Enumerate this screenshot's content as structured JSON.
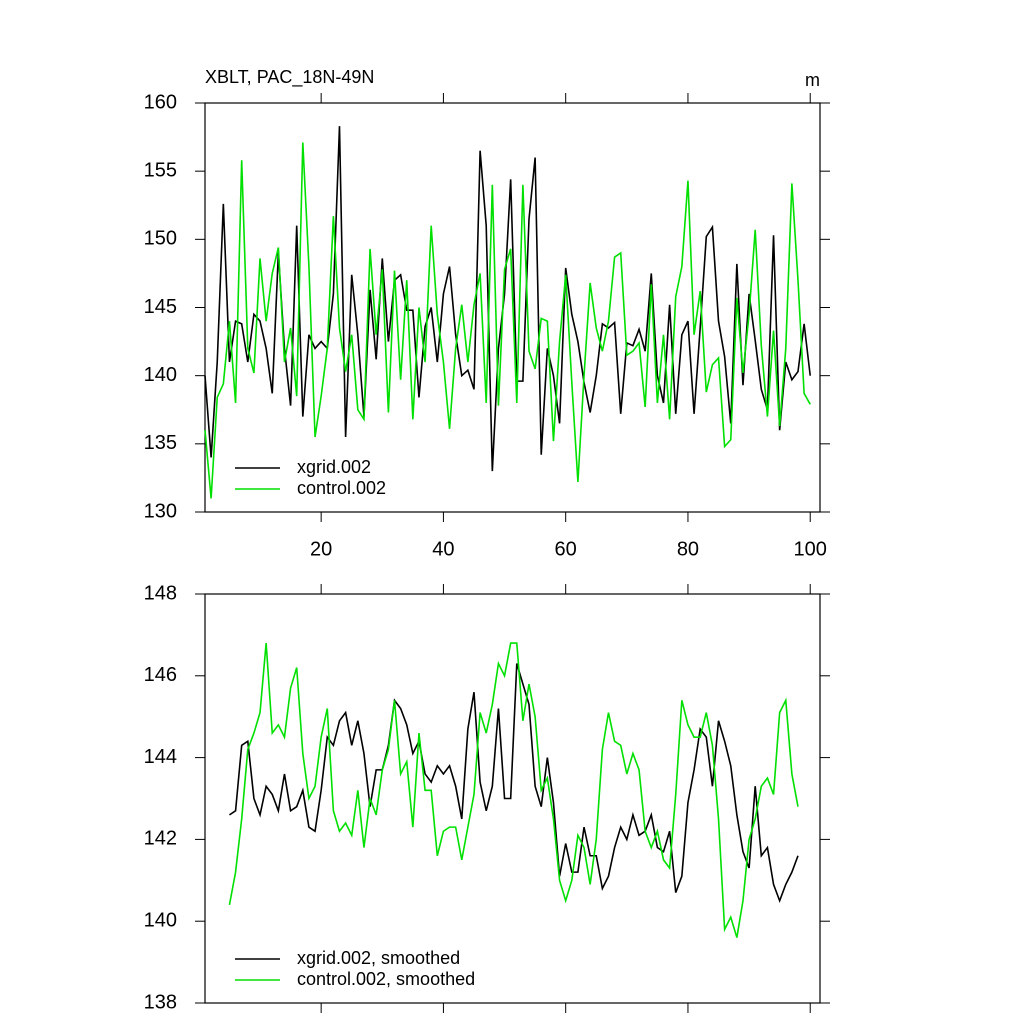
{
  "chart_data": [
    {
      "type": "line",
      "title": "XBLT, PAC_18N-49N",
      "units": "m",
      "x": [
        1,
        2,
        3,
        4,
        5,
        6,
        7,
        8,
        9,
        10,
        11,
        12,
        13,
        14,
        15,
        16,
        17,
        18,
        19,
        20,
        21,
        22,
        23,
        24,
        25,
        26,
        27,
        28,
        29,
        30,
        31,
        32,
        33,
        34,
        35,
        36,
        37,
        38,
        39,
        40,
        41,
        42,
        43,
        44,
        45,
        46,
        47,
        48,
        49,
        50,
        51,
        52,
        53,
        54,
        55,
        56,
        57,
        58,
        59,
        60,
        61,
        62,
        63,
        64,
        65,
        66,
        67,
        68,
        69,
        70,
        71,
        72,
        73,
        74,
        75,
        76,
        77,
        78,
        79,
        80,
        81,
        82,
        83,
        84,
        85,
        86,
        87,
        88,
        89,
        90,
        91,
        92,
        93,
        94,
        95,
        96,
        97,
        98,
        99,
        100
      ],
      "series": [
        {
          "name": "xgrid.002",
          "color": "#000000",
          "values": [
            140,
            134,
            141,
            152.6,
            141,
            144,
            143.8,
            141,
            144.5,
            144,
            142,
            138.7,
            149,
            142,
            137.8,
            151,
            137,
            143,
            142,
            142.5,
            142,
            146,
            158.3,
            135.5,
            147.4,
            143,
            137,
            146.3,
            141.2,
            148.6,
            142.5,
            147,
            147.4,
            144.8,
            144.8,
            138.4,
            143.6,
            145,
            141,
            146,
            148,
            143,
            140,
            140.4,
            139,
            156.5,
            151,
            133,
            142,
            146,
            154.4,
            139.6,
            139.6,
            151.5,
            156,
            134.2,
            142,
            140,
            136.5,
            147.9,
            144.5,
            142.5,
            139.5,
            137.3,
            140,
            143.8,
            143.5,
            143.9,
            137.2,
            142.4,
            142.2,
            143.4,
            141.8,
            147.5,
            140,
            138,
            145.2,
            137.2,
            143,
            144,
            137.2,
            143.5,
            150.2,
            150.9,
            144,
            141.4,
            136.5,
            148.2,
            139.3,
            146,
            142.6,
            139,
            137.5,
            150.3,
            136,
            141,
            139.7,
            140.3,
            143.8,
            140
          ]
        },
        {
          "name": "control.002",
          "color": "#00e000",
          "values": [
            136,
            131,
            138.4,
            139.4,
            144,
            138,
            155.8,
            142,
            140.2,
            148.6,
            144,
            147.5,
            149.4,
            141,
            143.5,
            138.5,
            157.1,
            148,
            135.5,
            138.5,
            142,
            151.7,
            143.5,
            140.3,
            143,
            137.5,
            136.8,
            149.3,
            143,
            147.8,
            137.3,
            147.7,
            139.7,
            147,
            136.8,
            145,
            141,
            151,
            144.5,
            141,
            136.1,
            142,
            145.2,
            141,
            145.2,
            147.5,
            138,
            154,
            137.8,
            147.8,
            149.3,
            138,
            154,
            141.8,
            140.5,
            144.2,
            144,
            135.2,
            142.5,
            147.4,
            139.5,
            132.2,
            140,
            146.8,
            143.5,
            141.8,
            144,
            148.7,
            149,
            141.5,
            141.8,
            142.4,
            137.7,
            146.7,
            138,
            143,
            136.8,
            145.8,
            148,
            154.3,
            143,
            146.2,
            138.8,
            140.8,
            141.3,
            134.8,
            135.3,
            145.7,
            140.2,
            144.5,
            150.7,
            142.2,
            137,
            143.3,
            136.3,
            142,
            154.1,
            147,
            138.7,
            137.9
          ]
        }
      ],
      "xlim": [
        1,
        101.6
      ],
      "ylim": [
        130,
        160
      ],
      "xticks": [
        20,
        40,
        60,
        80,
        100
      ],
      "yticks": [
        130,
        135,
        140,
        145,
        150,
        155,
        160
      ],
      "show_xtick_labels": true
    },
    {
      "type": "line",
      "x": [
        5,
        6,
        7,
        8,
        9,
        10,
        11,
        12,
        13,
        14,
        15,
        16,
        17,
        18,
        19,
        20,
        21,
        22,
        23,
        24,
        25,
        26,
        27,
        28,
        29,
        30,
        31,
        32,
        33,
        34,
        35,
        36,
        37,
        38,
        39,
        40,
        41,
        42,
        43,
        44,
        45,
        46,
        47,
        48,
        49,
        50,
        51,
        52,
        53,
        54,
        55,
        56,
        57,
        58,
        59,
        60,
        61,
        62,
        63,
        64,
        65,
        66,
        67,
        68,
        69,
        70,
        71,
        72,
        73,
        74,
        75,
        76,
        77,
        78,
        79,
        80,
        81,
        82,
        83,
        84,
        85,
        86,
        87,
        88,
        89,
        90,
        91,
        92,
        93,
        94,
        95,
        96,
        97,
        98
      ],
      "series": [
        {
          "name": "xgrid.002, smoothed",
          "color": "#000000",
          "values": [
            142.6,
            142.7,
            144.3,
            144.4,
            143,
            142.6,
            143.3,
            143.1,
            142.7,
            143.6,
            142.7,
            142.8,
            143.2,
            142.3,
            142.2,
            143.2,
            144.5,
            144.3,
            144.9,
            145.1,
            144.3,
            144.9,
            144.1,
            142.8,
            143.7,
            143.7,
            144.3,
            145.4,
            145.2,
            144.8,
            144.1,
            144.4,
            143.6,
            143.4,
            143.8,
            143.6,
            143.8,
            143.3,
            142.5,
            144.7,
            145.6,
            143.4,
            142.7,
            143.3,
            145.2,
            143,
            143,
            146.3,
            145.8,
            145.3,
            143.3,
            142.8,
            144,
            142.9,
            141.1,
            141.9,
            141.2,
            141.2,
            142.3,
            141.6,
            141.6,
            140.8,
            141.1,
            141.8,
            142.3,
            142,
            142.6,
            142.1,
            142.2,
            142.6,
            141.8,
            141.7,
            142.2,
            140.7,
            141.1,
            142.9,
            143.7,
            144.7,
            144.5,
            143.3,
            144.9,
            144.4,
            143.8,
            142.6,
            141.7,
            141.3,
            143.3,
            141.6,
            141.8,
            140.9,
            140.5,
            140.9,
            141.2,
            141.6
          ]
        },
        {
          "name": "control.002, smoothed",
          "color": "#00e000",
          "values": [
            140.4,
            141.2,
            142.5,
            144.2,
            144.6,
            145.1,
            146.8,
            144.6,
            144.8,
            144.5,
            145.7,
            146.2,
            144.1,
            143,
            143.3,
            144.5,
            145.2,
            142.7,
            142.2,
            142.4,
            142.1,
            143.2,
            141.8,
            143,
            142.6,
            143.7,
            144.2,
            145.4,
            143.6,
            143.9,
            142.3,
            144.6,
            143.2,
            143.2,
            141.6,
            142.2,
            142.3,
            142.3,
            141.5,
            142.3,
            143.1,
            145.1,
            144.6,
            145.3,
            146.3,
            146,
            146.8,
            146.8,
            144.9,
            145.8,
            145,
            143.2,
            143.5,
            142.5,
            141,
            140.5,
            141,
            142.1,
            141.8,
            140.9,
            142,
            144.2,
            145.1,
            144.4,
            144.3,
            143.6,
            144.1,
            143.7,
            142.2,
            141.8,
            142.2,
            141.5,
            141.3,
            143.1,
            145.4,
            144.8,
            144.5,
            144.5,
            145.1,
            144.3,
            142.5,
            139.8,
            140.1,
            139.6,
            140.5,
            142,
            142.5,
            143.3,
            143.5,
            143.1,
            145.1,
            145.4,
            143.6,
            142.8
          ]
        }
      ],
      "xlim": [
        1,
        101.6
      ],
      "ylim": [
        138,
        148
      ],
      "xticks": [
        20,
        40,
        60,
        80,
        100
      ],
      "yticks": [
        138,
        140,
        142,
        144,
        146,
        148
      ],
      "show_xtick_labels": false
    }
  ]
}
